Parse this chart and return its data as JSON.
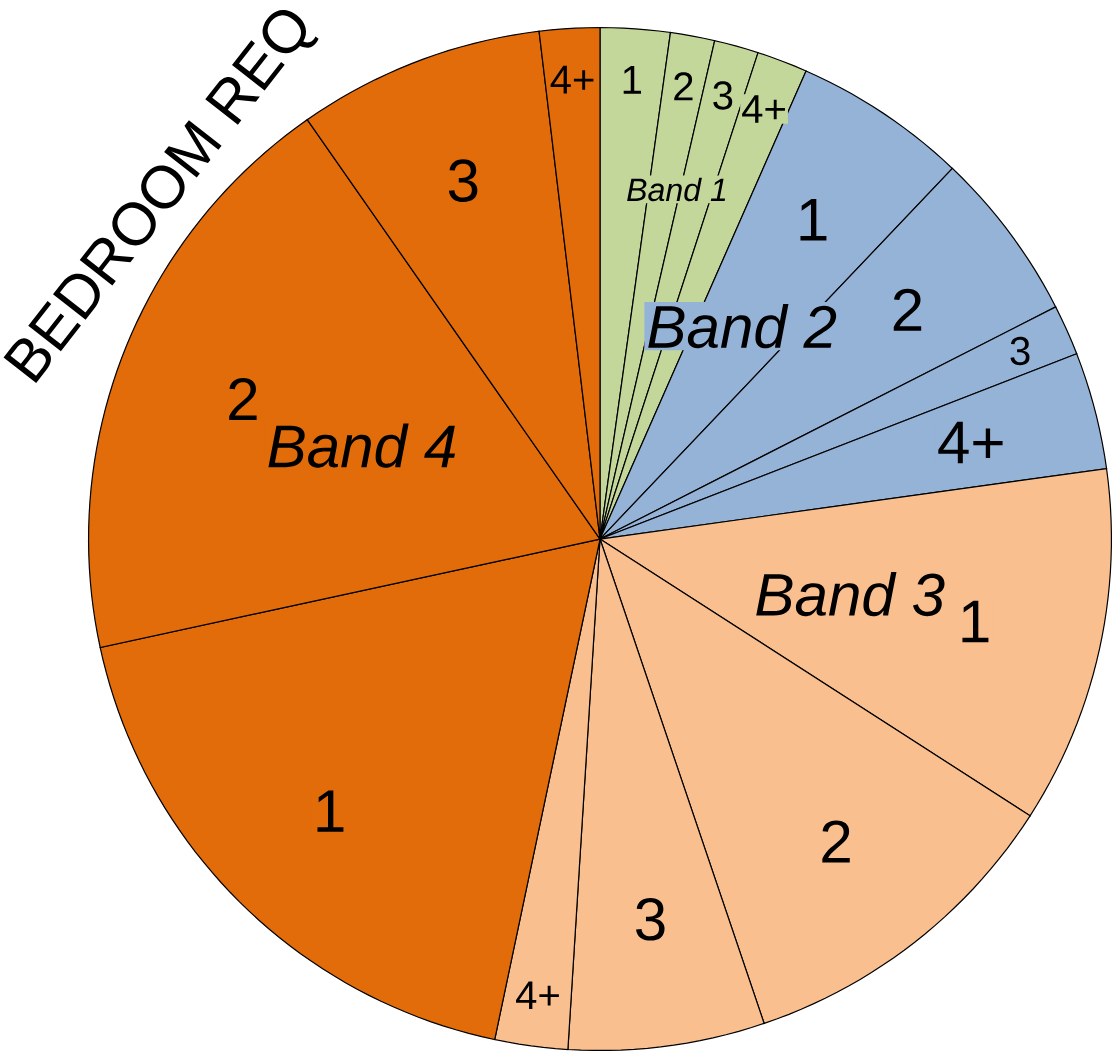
{
  "chart_data": {
    "type": "pie",
    "title": "BEDROOM REQ",
    "categories": [
      "1",
      "2",
      "3",
      "4+",
      "1",
      "2",
      "3",
      "4+",
      "1",
      "2",
      "3",
      "4+",
      "1",
      "2",
      "3",
      "4+"
    ],
    "values": [
      2.2,
      1.4,
      1.4,
      1.6,
      5.5,
      5.4,
      1.6,
      3.7,
      11.3,
      10.7,
      6.2,
      2.3,
      18.3,
      18.7,
      7.8,
      1.9
    ],
    "colors": [
      "#c4d79b",
      "#c4d79b",
      "#c4d79b",
      "#c4d79b",
      "#95b3d7",
      "#95b3d7",
      "#95b3d7",
      "#95b3d7",
      "#fabf8f",
      "#fabf8f",
      "#fabf8f",
      "#fabf8f",
      "#e26b0a",
      "#e26b0a",
      "#e26b0a",
      "#e26b0a"
    ],
    "annotations": [
      "Band 1",
      "Band 2",
      "Band 3",
      "Band 4"
    ]
  }
}
